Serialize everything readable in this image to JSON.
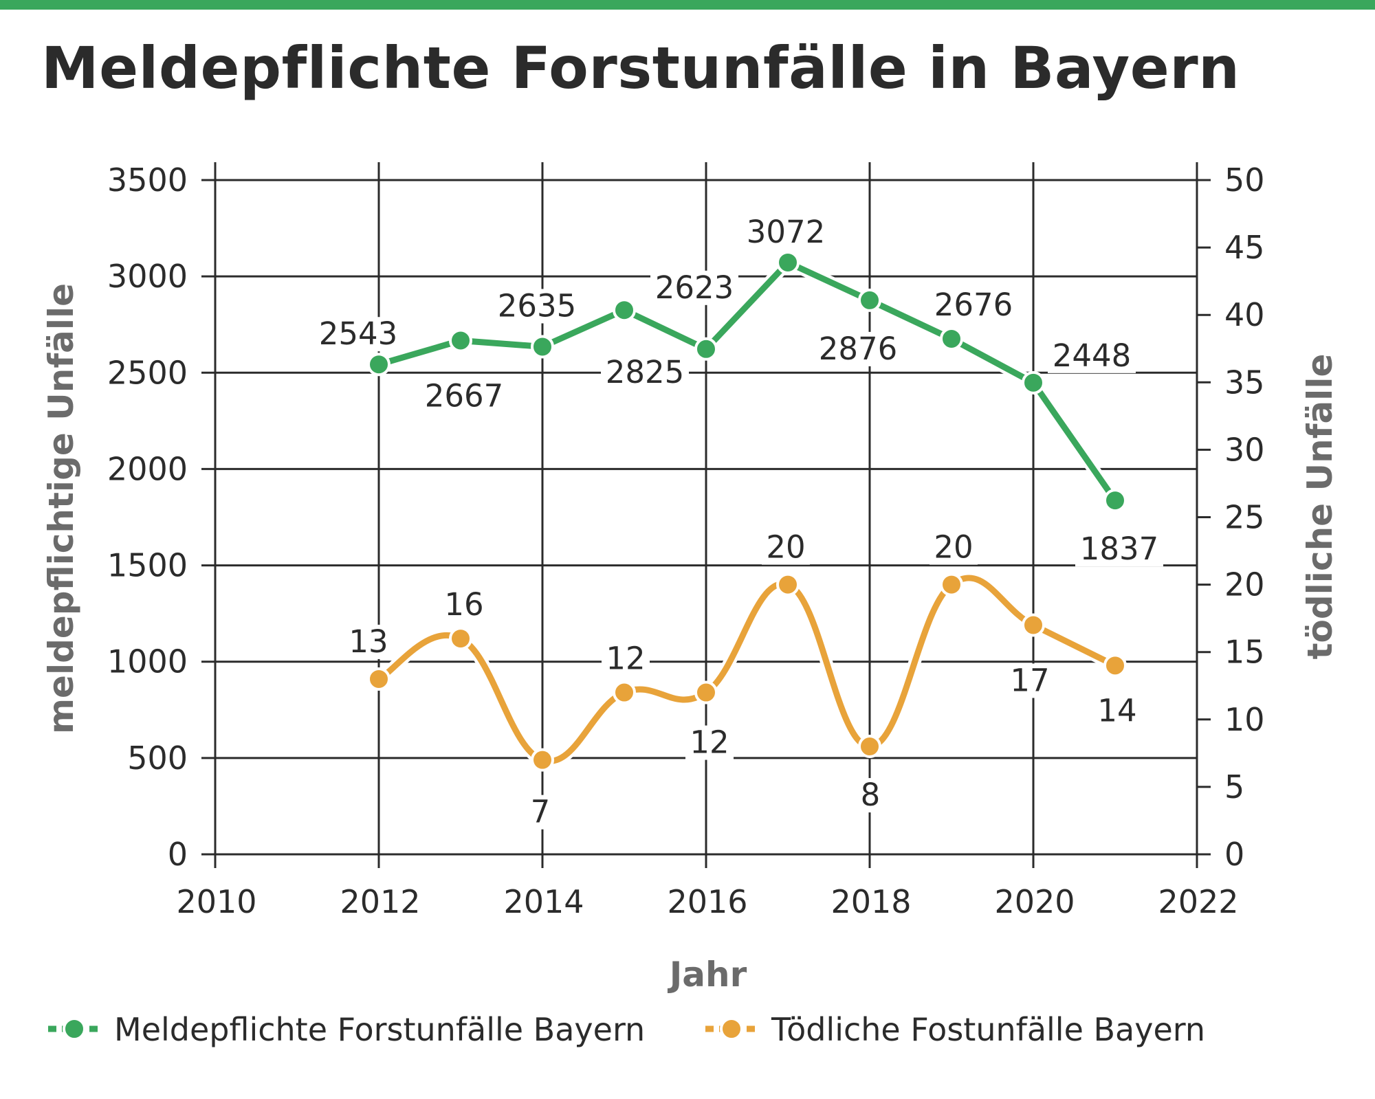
{
  "colors": {
    "green": "#3aa75c",
    "orange": "#e8a33a",
    "axis": "#2b2b2b",
    "top_bar": "#3aa75c"
  },
  "chart_data": {
    "type": "line",
    "title": "Meldepflichte Forstunfälle in Bayern",
    "xlabel": "Jahr",
    "ylabel_left": "meldepflichtige Unfälle",
    "ylabel_right": "tödliche Unfälle",
    "xlim": [
      2010,
      2022
    ],
    "ylim_left": [
      0,
      3500
    ],
    "ylim_right": [
      0,
      50
    ],
    "x_ticks": [
      "2010",
      "2012",
      "2014",
      "2016",
      "2018",
      "2020",
      "2022"
    ],
    "y_ticks_left": [
      "0",
      "500",
      "1000",
      "1500",
      "2000",
      "2500",
      "3000",
      "3500"
    ],
    "y_ticks_right": [
      "0",
      "5",
      "10",
      "15",
      "20",
      "25",
      "30",
      "35",
      "40",
      "45",
      "50"
    ],
    "grid": true,
    "legend_position": "bottom",
    "series": [
      {
        "name": "Meldepflichte Forstunfälle Bayern",
        "axis": "left",
        "x": [
          2012,
          2013,
          2014,
          2015,
          2016,
          2017,
          2018,
          2019,
          2020,
          2021
        ],
        "values": [
          2543,
          2667,
          2635,
          2825,
          2623,
          3072,
          2876,
          2676,
          2448,
          1837
        ],
        "labels": [
          "2543",
          "2667",
          "2635",
          "2825",
          "2623",
          "3072",
          "2876",
          "2676",
          "2448",
          "1837"
        ]
      },
      {
        "name": "Tödliche Fostunfälle Bayern",
        "axis": "right",
        "x": [
          2012,
          2013,
          2014,
          2015,
          2016,
          2017,
          2018,
          2019,
          2020,
          2021
        ],
        "values": [
          13,
          16,
          7,
          12,
          12,
          20,
          8,
          20,
          17,
          14
        ],
        "labels": [
          "13",
          "16",
          "7",
          "12",
          "12",
          "20",
          "8",
          "20",
          "17",
          "14"
        ]
      }
    ]
  }
}
